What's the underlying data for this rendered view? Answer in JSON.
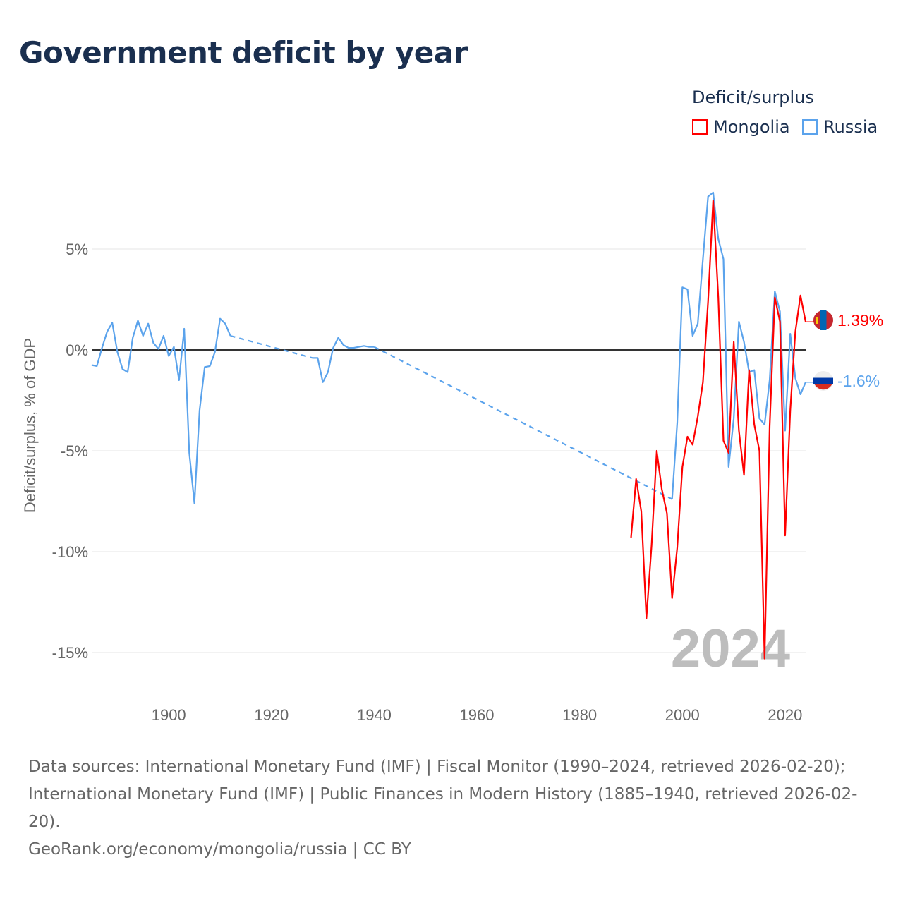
{
  "title": "Government deficit by year",
  "legend": {
    "title": "Deficit/surplus",
    "items": [
      {
        "name": "Mongolia",
        "color": "#ff0000"
      },
      {
        "name": "Russia",
        "color": "#5ba3ec"
      }
    ]
  },
  "chart_data": {
    "type": "line",
    "title": "Government deficit by year",
    "ylabel": "Deficit/surplus, % of GDP",
    "xlabel": "",
    "xlim": [
      1885,
      2024
    ],
    "ylim": [
      -17.5,
      9
    ],
    "xticks": [
      1900,
      1920,
      1940,
      1960,
      1980,
      2000,
      2020
    ],
    "yticks": [
      {
        "v": 5,
        "label": "5%"
      },
      {
        "v": 0,
        "label": "0%"
      },
      {
        "v": -5,
        "label": "-5%"
      },
      {
        "v": -10,
        "label": "-10%"
      },
      {
        "v": -15,
        "label": "-15%"
      }
    ],
    "year_watermark": "2024",
    "series": [
      {
        "name": "Russia",
        "color": "#5ba3ec",
        "end_label": "-1.6%",
        "segments": [
          {
            "style": "solid",
            "x": [
              1885,
              1886,
              1887,
              1888,
              1889,
              1890,
              1891,
              1892,
              1893,
              1894,
              1895,
              1896,
              1897,
              1898,
              1899,
              1900,
              1901,
              1902,
              1903,
              1904,
              1905,
              1906,
              1907,
              1908,
              1909,
              1910,
              1911,
              1912
            ],
            "y": [
              -0.75,
              -0.8,
              0.1,
              0.9,
              1.35,
              -0.1,
              -0.95,
              -1.1,
              0.6,
              1.45,
              0.7,
              1.3,
              0.35,
              0.05,
              0.7,
              -0.3,
              0.15,
              -1.5,
              1.05,
              -5.1,
              -7.6,
              -3.0,
              -0.85,
              -0.8,
              -0.1,
              1.55,
              1.3,
              0.7
            ]
          },
          {
            "style": "dashed",
            "x": [
              1912,
              1928
            ],
            "y": [
              0.7,
              -0.4
            ]
          },
          {
            "style": "solid",
            "x": [
              1928,
              1929,
              1930,
              1931,
              1932,
              1933,
              1934,
              1935,
              1936,
              1937,
              1938,
              1939,
              1940
            ],
            "y": [
              -0.4,
              -0.4,
              -1.6,
              -1.1,
              0.1,
              0.6,
              0.25,
              0.1,
              0.1,
              0.15,
              0.2,
              0.15,
              0.15
            ]
          },
          {
            "style": "dashed",
            "x": [
              1940,
              1998
            ],
            "y": [
              0.15,
              -7.4
            ]
          },
          {
            "style": "solid",
            "x": [
              1998,
              1999,
              2000,
              2001,
              2002,
              2003,
              2004,
              2005,
              2006,
              2007,
              2008,
              2009,
              2010,
              2011,
              2012,
              2013,
              2014,
              2015,
              2016,
              2017,
              2018,
              2019,
              2020,
              2021,
              2022,
              2023,
              2024
            ],
            "y": [
              -7.4,
              -3.6,
              3.1,
              3.0,
              0.7,
              1.3,
              4.5,
              7.6,
              7.8,
              5.5,
              4.5,
              -5.8,
              -3.4,
              1.4,
              0.4,
              -1.1,
              -1.0,
              -3.4,
              -3.7,
              -1.5,
              2.9,
              1.9,
              -4.0,
              0.8,
              -1.4,
              -2.2,
              -1.6
            ]
          }
        ]
      },
      {
        "name": "Mongolia",
        "color": "#ff0000",
        "end_label": "1.39%",
        "segments": [
          {
            "style": "solid",
            "x": [
              1990,
              1991,
              1992,
              1993,
              1994,
              1995,
              1996,
              1997,
              1998,
              1999,
              2000,
              2001,
              2002,
              2003,
              2004,
              2005,
              2006,
              2007,
              2008,
              2009,
              2010,
              2011,
              2012,
              2013,
              2014,
              2015,
              2016,
              2017,
              2018,
              2019,
              2020,
              2021,
              2022,
              2023,
              2024
            ],
            "y": [
              -9.3,
              -6.4,
              -8.0,
              -13.3,
              -9.7,
              -5.0,
              -6.9,
              -8.1,
              -12.3,
              -9.8,
              -5.8,
              -4.3,
              -4.7,
              -3.3,
              -1.6,
              2.4,
              7.4,
              2.6,
              -4.5,
              -5.1,
              0.4,
              -4.0,
              -6.2,
              -1.0,
              -3.7,
              -5.0,
              -15.3,
              -3.8,
              2.6,
              1.4,
              -9.2,
              -3.0,
              0.9,
              2.7,
              1.39
            ]
          }
        ]
      }
    ]
  },
  "footer": {
    "sources": "Data sources: International Monetary Fund (IMF) | Fiscal Monitor (1990–2024, retrieved 2026-02-20); International Monetary Fund (IMF) | Public Finances in Modern History (1885–1940, retrieved 2026-02-20).",
    "credit": "GeoRank.org/economy/mongolia/russia | CC BY"
  }
}
